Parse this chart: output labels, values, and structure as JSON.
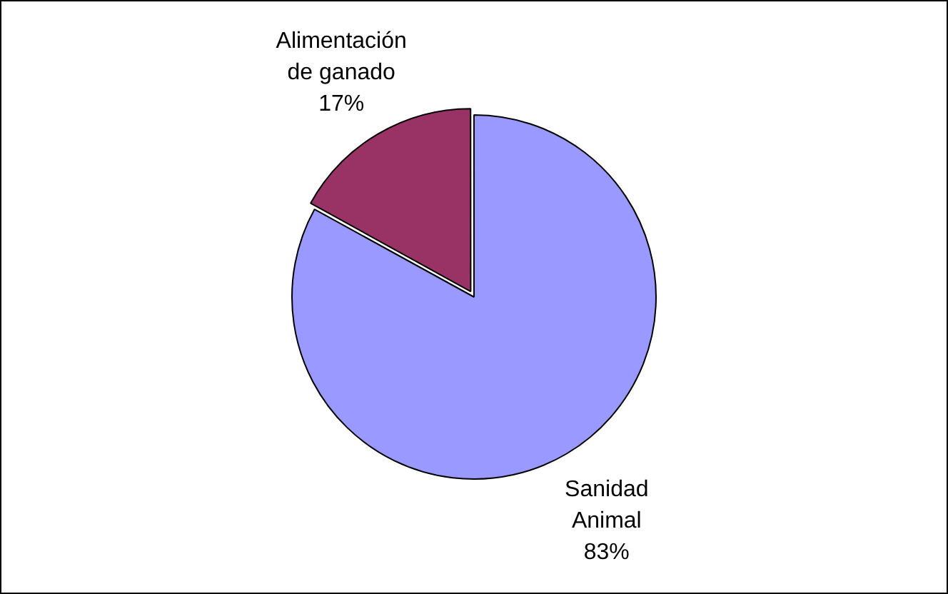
{
  "chart_data": {
    "type": "pie",
    "categories": [
      "Sanidad Animal",
      "Alimentación de ganado"
    ],
    "values": [
      83,
      17
    ],
    "colors": [
      "#9999ff",
      "#993366"
    ],
    "value_labels": [
      "83%",
      "17%"
    ],
    "legend": false
  }
}
